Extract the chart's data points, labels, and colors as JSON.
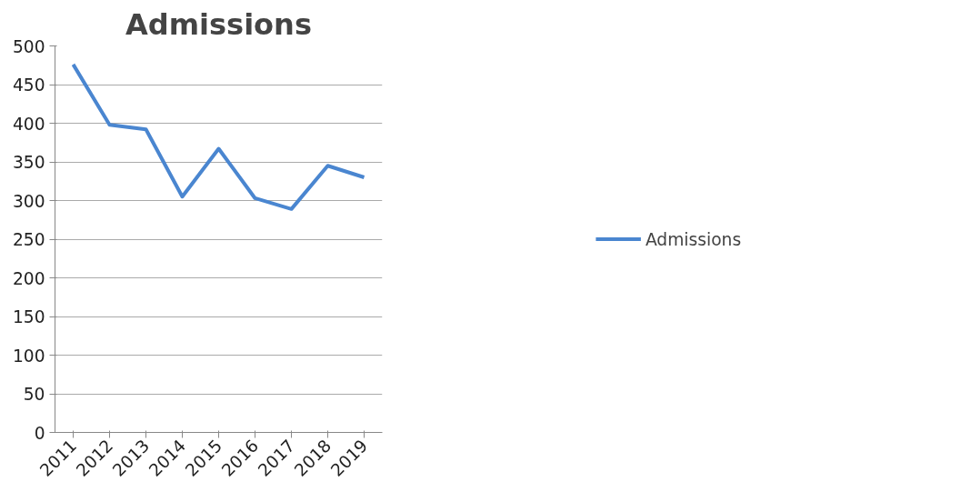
{
  "chart_data": {
    "type": "line",
    "title": "Admissions",
    "categories": [
      "2011",
      "2012",
      "2013",
      "2014",
      "2015",
      "2016",
      "2017",
      "2018",
      "2019"
    ],
    "series": [
      {
        "name": "Admissions",
        "color": "#4a86d0",
        "values": [
          476,
          398,
          392,
          305,
          367,
          303,
          289,
          345,
          330
        ]
      }
    ],
    "ylim": [
      0,
      500
    ],
    "yticks": [
      0,
      50,
      100,
      150,
      200,
      250,
      300,
      350,
      400,
      450,
      500
    ],
    "grid": "y",
    "legend": "right",
    "marker": "none",
    "line_style": "solid"
  }
}
